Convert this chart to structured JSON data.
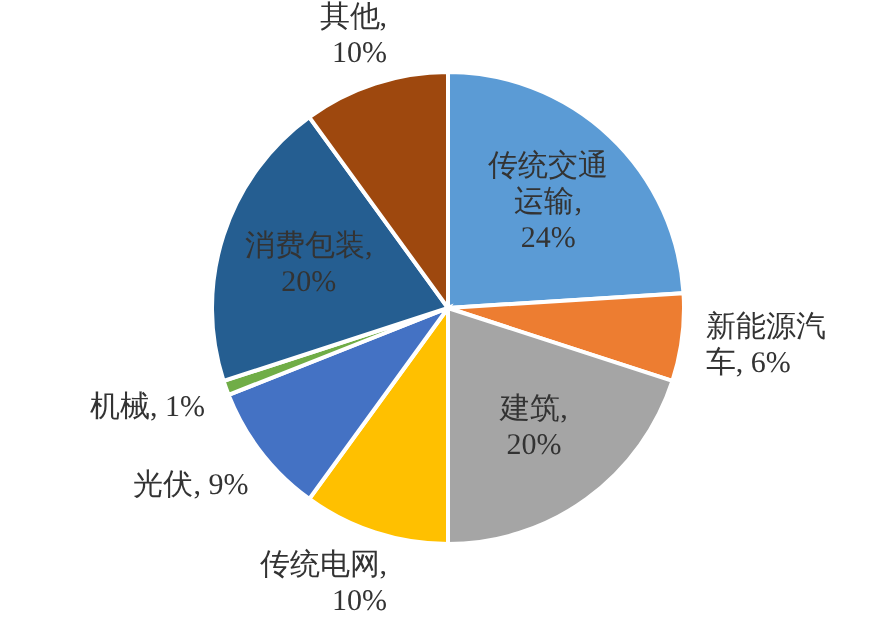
{
  "chart_data": {
    "type": "pie",
    "categories": [
      "传统交通运输",
      "新能源汽车",
      "建筑",
      "传统电网",
      "光伏",
      "机械",
      "消费包装",
      "其他"
    ],
    "values": [
      24,
      6,
      20,
      10,
      9,
      1,
      20,
      10
    ],
    "colors": [
      "#5b9bd5",
      "#ed7d31",
      "#a5a5a5",
      "#ffc000",
      "#4472c4",
      "#70ad47",
      "#255e91",
      "#9e480e"
    ],
    "value_labels": [
      ", 24%",
      ", 6%",
      ", 20%",
      ", 10%",
      ", 9%",
      ", 1%",
      ", 20%",
      ", 10%"
    ]
  }
}
